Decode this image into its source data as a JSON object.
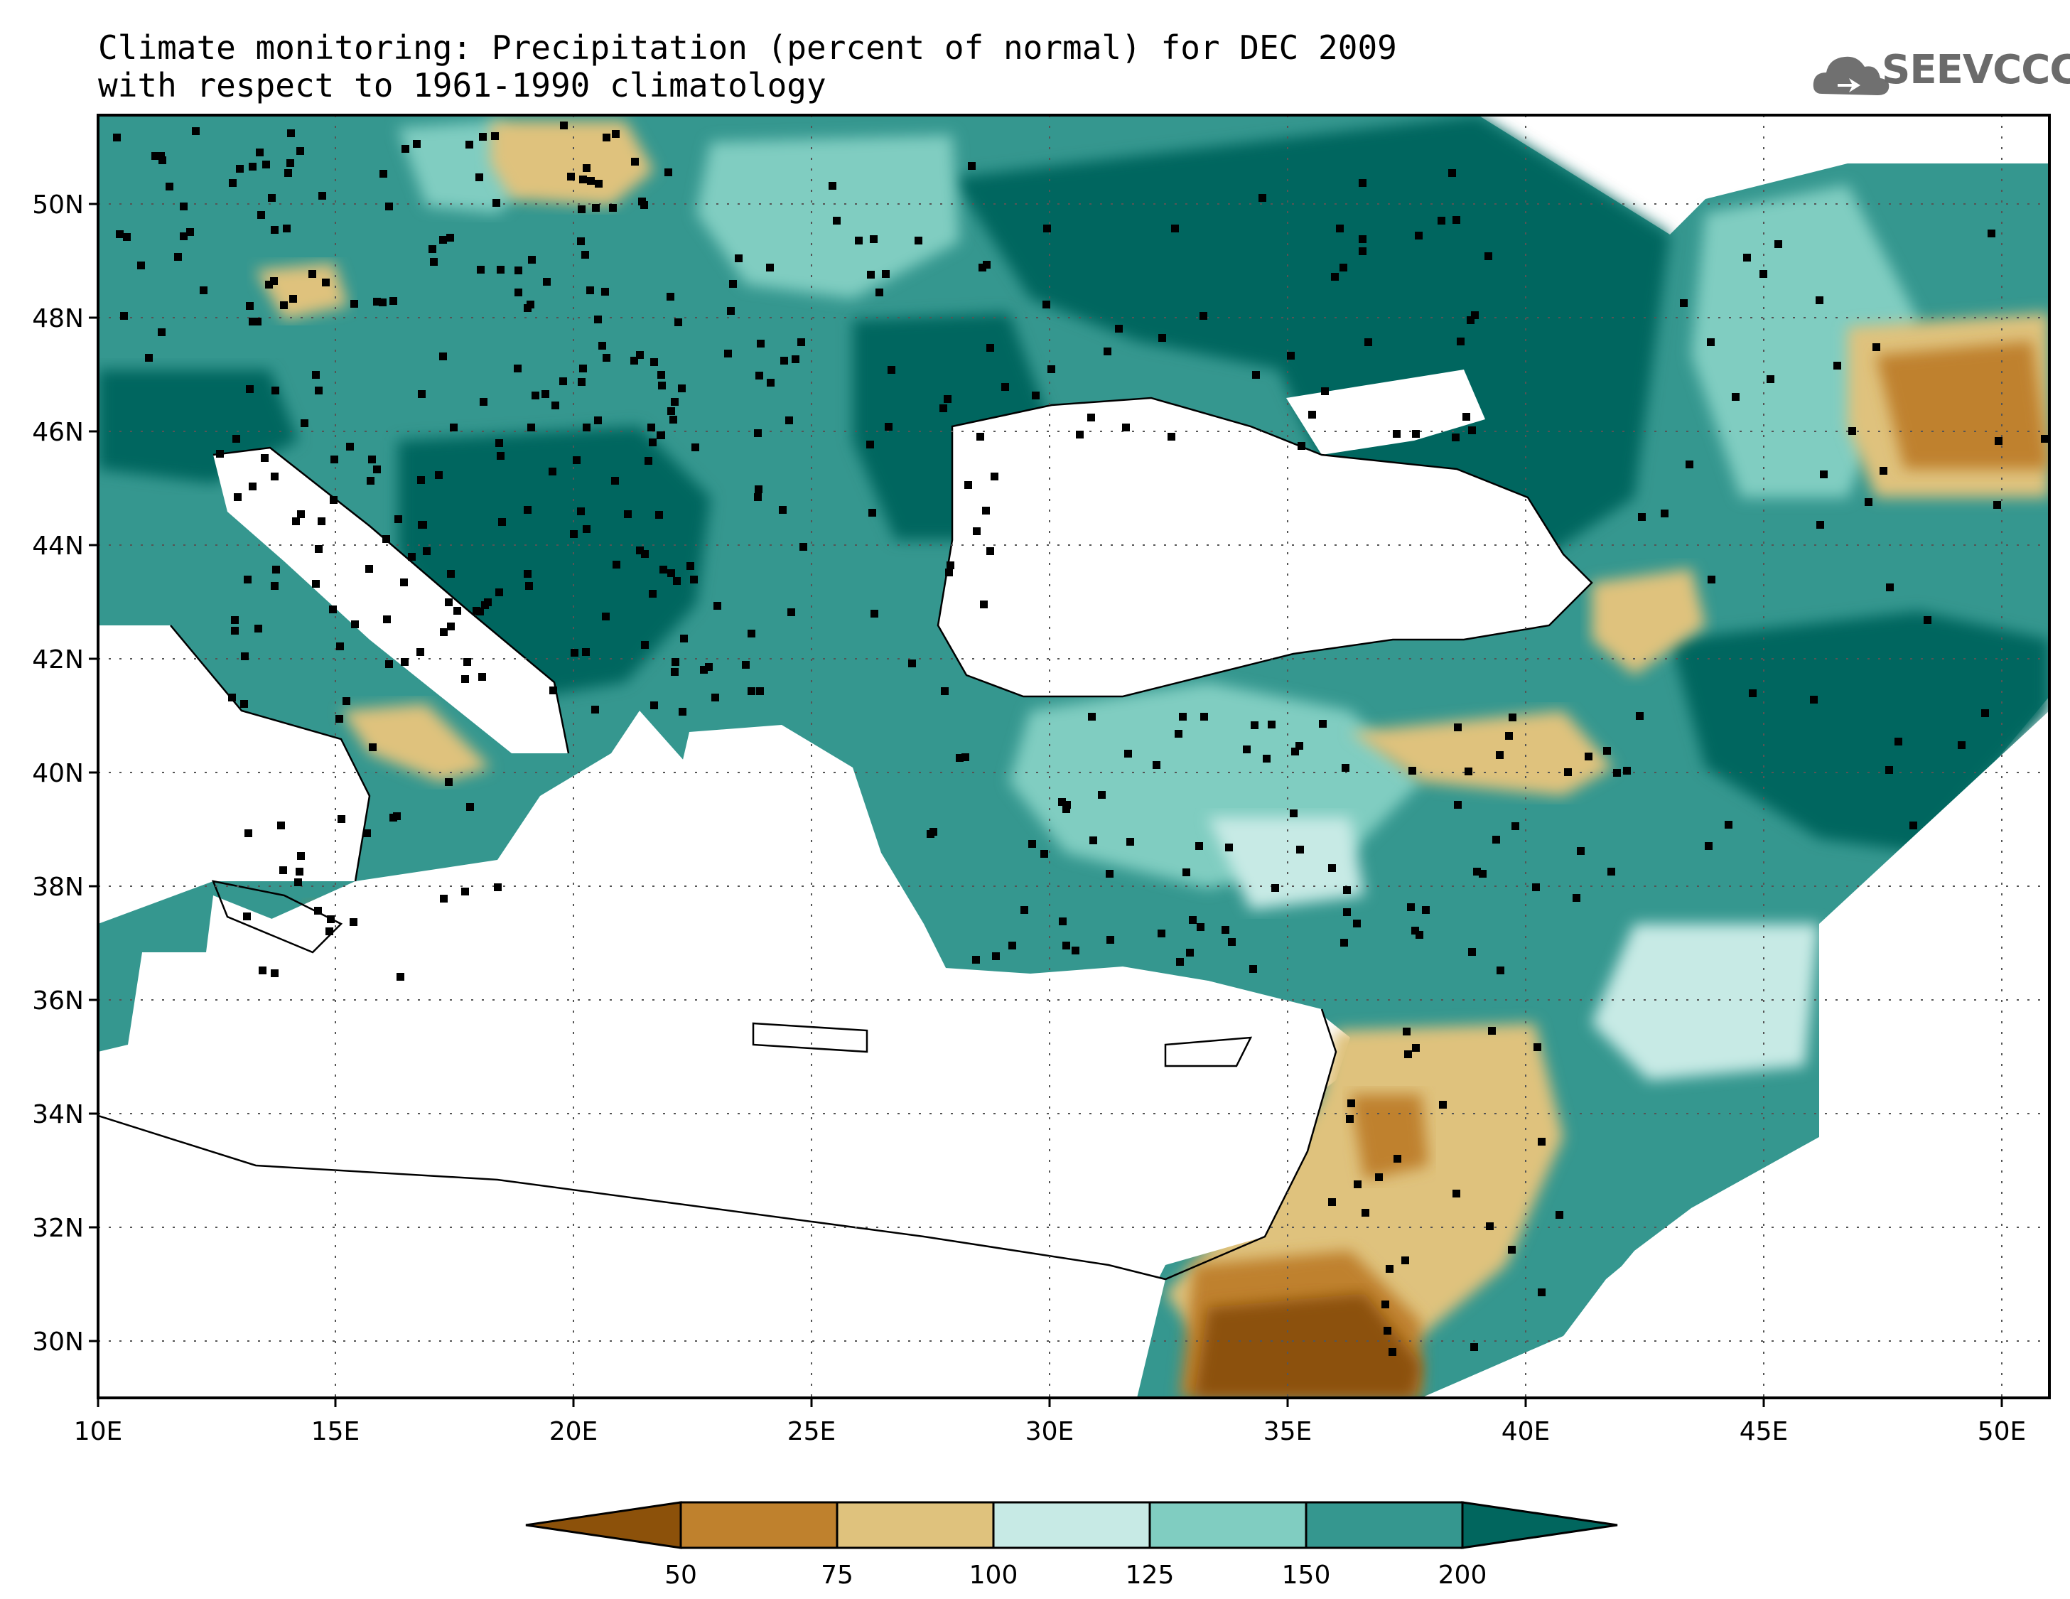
{
  "title_line1": "Climate monitoring: Precipitation (percent of normal) for DEC 2009",
  "title_line2": "with respect to 1961-1990 climatology",
  "logo_text": "SEEVCCC",
  "logo_icon": "cloud-icon",
  "map": {
    "lon_range": [
      10,
      51
    ],
    "lat_range": [
      29,
      51.5
    ],
    "x_ticks": [
      "10E",
      "15E",
      "20E",
      "25E",
      "30E",
      "35E",
      "40E",
      "45E",
      "50E"
    ],
    "y_ticks": [
      "30N",
      "32N",
      "34N",
      "36N",
      "38N",
      "40N",
      "42N",
      "44N",
      "46N",
      "48N",
      "50N"
    ],
    "grid": true
  },
  "colorbar": {
    "levels": [
      "50",
      "75",
      "100",
      "125",
      "150",
      "200"
    ],
    "colors": [
      "#8c510a",
      "#bf812d",
      "#dfc27d",
      "#c7eae5",
      "#80cdc1",
      "#35978f",
      "#01665e"
    ]
  }
}
